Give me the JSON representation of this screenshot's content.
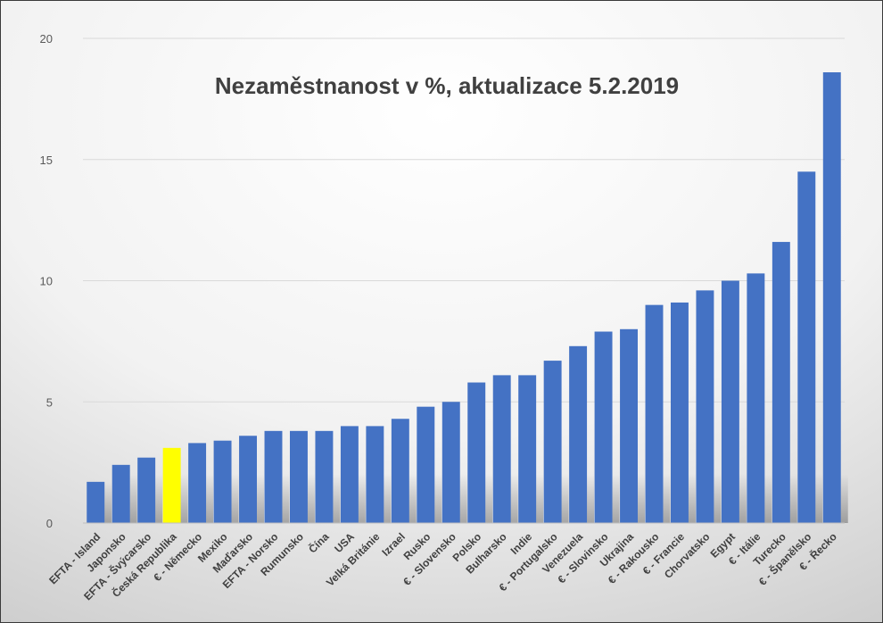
{
  "chart_data": {
    "type": "bar",
    "title": "Nezaměstnanost v %, aktualizace 5.2.2019",
    "xlabel": "",
    "ylabel": "",
    "ylim": [
      0,
      20
    ],
    "yticks": [
      "0",
      "5",
      "10",
      "15",
      "20"
    ],
    "grid": true,
    "legend": "none",
    "categories": [
      "EFTA - Island",
      "Japonsko",
      "EFTA - Švýcarsko",
      "Česká Republika",
      "€ - Německo",
      "Mexiko",
      "Maďarsko",
      "EFTA - Norsko",
      "Rumunsko",
      "Čína",
      "USA",
      "Velká Británie",
      "Izrael",
      "Rusko",
      "€ - Slovensko",
      "Polsko",
      "Bulharsko",
      "Indie",
      "€ - Portugalsko",
      "Venezuela",
      "€ - Slovinsko",
      "Ukrajina",
      "€ - Rakousko",
      "€ - Francie",
      "Chorvatsko",
      "Egypt",
      "€ - Itálie",
      "Turecko",
      "€ - Španělsko",
      "€ - Řecko"
    ],
    "values": [
      1.7,
      2.4,
      2.7,
      3.1,
      3.3,
      3.4,
      3.6,
      3.8,
      3.8,
      3.8,
      4.0,
      4.0,
      4.3,
      4.8,
      5.0,
      5.8,
      6.1,
      6.1,
      6.7,
      7.3,
      7.9,
      8.0,
      9.0,
      9.1,
      9.6,
      10.0,
      10.3,
      11.6,
      14.5,
      18.6
    ],
    "colors": {
      "bar": "#4472C4",
      "highlight": "#FFFF00",
      "highlight_category": "Česká Republika",
      "grid": "#d9d9d9",
      "axis": "#bfbfbf"
    }
  }
}
